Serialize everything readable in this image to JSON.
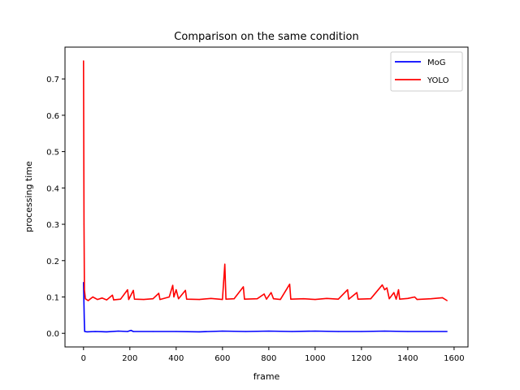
{
  "chart_data": {
    "type": "line",
    "title": "Comparison on the same condition",
    "xlabel": "frame",
    "ylabel": "processing time",
    "xlim": [
      -80,
      1660
    ],
    "ylim": [
      -0.0375,
      0.7875
    ],
    "xticks": [
      0,
      200,
      400,
      600,
      800,
      1000,
      1200,
      1400,
      1600
    ],
    "yticks": [
      0.0,
      0.1,
      0.2,
      0.3,
      0.4,
      0.5,
      0.6,
      0.7
    ],
    "xtick_labels": [
      "0",
      "200",
      "400",
      "600",
      "800",
      "1000",
      "1200",
      "1400",
      "1600"
    ],
    "ytick_labels": [
      "0.0",
      "0.1",
      "0.2",
      "0.3",
      "0.4",
      "0.5",
      "0.6",
      "0.7"
    ],
    "grid": false,
    "legend_position": "top-right",
    "series": [
      {
        "name": "MoG",
        "color": "#0000ff",
        "points": [
          [
            0,
            0.14
          ],
          [
            3,
            0.04
          ],
          [
            5,
            0.005
          ],
          [
            15,
            0.004
          ],
          [
            50,
            0.005
          ],
          [
            100,
            0.004
          ],
          [
            150,
            0.006
          ],
          [
            190,
            0.005
          ],
          [
            205,
            0.008
          ],
          [
            215,
            0.005
          ],
          [
            300,
            0.005
          ],
          [
            400,
            0.005
          ],
          [
            500,
            0.004
          ],
          [
            600,
            0.006
          ],
          [
            700,
            0.005
          ],
          [
            800,
            0.006
          ],
          [
            900,
            0.005
          ],
          [
            1000,
            0.006
          ],
          [
            1100,
            0.005
          ],
          [
            1200,
            0.005
          ],
          [
            1300,
            0.006
          ],
          [
            1400,
            0.005
          ],
          [
            1500,
            0.005
          ],
          [
            1570,
            0.005
          ]
        ]
      },
      {
        "name": "YOLO",
        "color": "#ff0000",
        "points": [
          [
            0,
            0.75
          ],
          [
            2,
            0.3
          ],
          [
            4,
            0.12
          ],
          [
            8,
            0.095
          ],
          [
            20,
            0.09
          ],
          [
            40,
            0.1
          ],
          [
            60,
            0.093
          ],
          [
            80,
            0.097
          ],
          [
            100,
            0.092
          ],
          [
            125,
            0.105
          ],
          [
            130,
            0.092
          ],
          [
            160,
            0.094
          ],
          [
            190,
            0.12
          ],
          [
            195,
            0.093
          ],
          [
            215,
            0.118
          ],
          [
            220,
            0.094
          ],
          [
            260,
            0.093
          ],
          [
            300,
            0.095
          ],
          [
            325,
            0.11
          ],
          [
            330,
            0.093
          ],
          [
            370,
            0.1
          ],
          [
            385,
            0.132
          ],
          [
            390,
            0.1
          ],
          [
            400,
            0.12
          ],
          [
            410,
            0.095
          ],
          [
            440,
            0.118
          ],
          [
            445,
            0.094
          ],
          [
            500,
            0.093
          ],
          [
            550,
            0.096
          ],
          [
            600,
            0.093
          ],
          [
            610,
            0.19
          ],
          [
            615,
            0.094
          ],
          [
            650,
            0.095
          ],
          [
            690,
            0.128
          ],
          [
            695,
            0.094
          ],
          [
            750,
            0.095
          ],
          [
            780,
            0.108
          ],
          [
            790,
            0.094
          ],
          [
            810,
            0.112
          ],
          [
            820,
            0.095
          ],
          [
            850,
            0.093
          ],
          [
            890,
            0.135
          ],
          [
            895,
            0.094
          ],
          [
            950,
            0.095
          ],
          [
            1000,
            0.093
          ],
          [
            1050,
            0.096
          ],
          [
            1100,
            0.094
          ],
          [
            1140,
            0.12
          ],
          [
            1145,
            0.094
          ],
          [
            1180,
            0.112
          ],
          [
            1185,
            0.094
          ],
          [
            1240,
            0.095
          ],
          [
            1290,
            0.133
          ],
          [
            1300,
            0.12
          ],
          [
            1310,
            0.125
          ],
          [
            1320,
            0.095
          ],
          [
            1340,
            0.112
          ],
          [
            1350,
            0.094
          ],
          [
            1360,
            0.12
          ],
          [
            1365,
            0.094
          ],
          [
            1400,
            0.096
          ],
          [
            1430,
            0.1
          ],
          [
            1440,
            0.093
          ],
          [
            1500,
            0.095
          ],
          [
            1550,
            0.098
          ],
          [
            1570,
            0.09
          ]
        ]
      }
    ]
  }
}
